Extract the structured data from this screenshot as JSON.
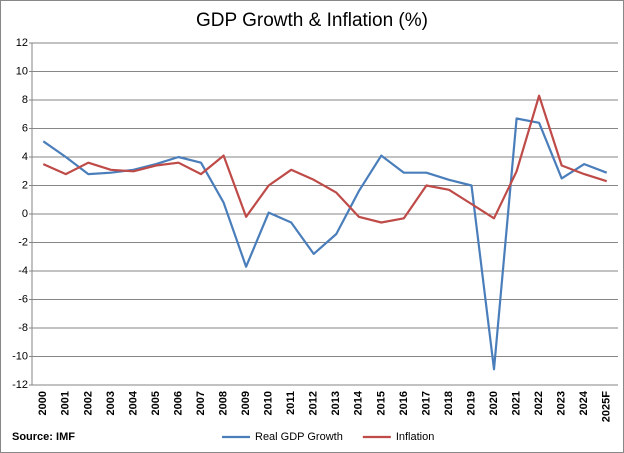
{
  "chart_data": {
    "type": "line",
    "title": "GDP Growth & Inflation (%)",
    "source": "Source: IMF",
    "categories": [
      "2000",
      "2001",
      "2002",
      "2003",
      "2004",
      "2005",
      "2006",
      "2007",
      "2008",
      "2009",
      "2010",
      "2011",
      "2012",
      "2013",
      "2014",
      "2015",
      "2016",
      "2017",
      "2018",
      "2019",
      "2020",
      "2021",
      "2022",
      "2023",
      "2024",
      "2025F"
    ],
    "series": [
      {
        "name": "Real GDP Growth",
        "color": "#4a7ebb",
        "values": [
          5.1,
          4.0,
          2.8,
          2.9,
          3.1,
          3.5,
          4.0,
          3.6,
          0.8,
          -3.7,
          0.1,
          -0.6,
          -2.8,
          -1.4,
          1.6,
          4.1,
          2.9,
          2.9,
          2.4,
          2.0,
          -10.9,
          6.7,
          6.4,
          2.5,
          3.5,
          2.9
        ]
      },
      {
        "name": "Inflation",
        "color": "#be4b48",
        "values": [
          3.5,
          2.8,
          3.6,
          3.1,
          3.0,
          3.4,
          3.6,
          2.8,
          4.1,
          -0.2,
          2.0,
          3.1,
          2.4,
          1.5,
          -0.2,
          -0.6,
          -0.3,
          2.0,
          1.7,
          0.7,
          -0.3,
          3.0,
          8.3,
          3.4,
          2.8,
          2.3
        ]
      }
    ],
    "ylim": [
      -12,
      12
    ],
    "yticks": [
      -12,
      -10,
      -8,
      -6,
      -4,
      -2,
      0,
      2,
      4,
      6,
      8,
      10,
      12
    ],
    "grid": true,
    "legend": "bottom"
  }
}
